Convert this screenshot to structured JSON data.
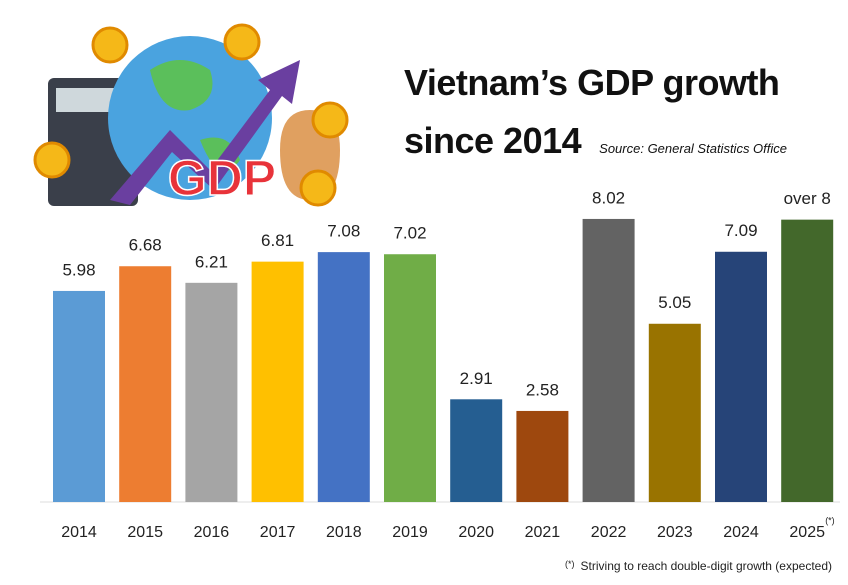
{
  "chart_data": {
    "type": "bar",
    "title": "Vietnam’s GDP growth since 2014",
    "source": "Source: General Statistics Office",
    "illustration_text": "GDP",
    "categories": [
      "2014",
      "2015",
      "2016",
      "2017",
      "2018",
      "2019",
      "2020",
      "2021",
      "2022",
      "2023",
      "2024",
      "2025"
    ],
    "values": [
      5.98,
      6.68,
      6.21,
      6.81,
      7.08,
      7.02,
      2.91,
      2.58,
      8.02,
      5.05,
      7.09,
      8
    ],
    "value_labels": [
      "5.98",
      "6.68",
      "6.21",
      "6.81",
      "7.08",
      "7.02",
      "2.91",
      "2.58",
      "8.02",
      "5.05",
      "7.09",
      "over 8"
    ],
    "colors": [
      "#5b9bd5",
      "#ed7d31",
      "#a5a5a5",
      "#ffc000",
      "#4472c4",
      "#70ad47",
      "#255e91",
      "#9e480e",
      "#636363",
      "#997300",
      "#264478",
      "#43682b"
    ],
    "ylim": [
      0,
      8.5
    ],
    "footnote": {
      "marker": "(*)",
      "text": "Striving to reach double-digit growth (expected)"
    }
  }
}
